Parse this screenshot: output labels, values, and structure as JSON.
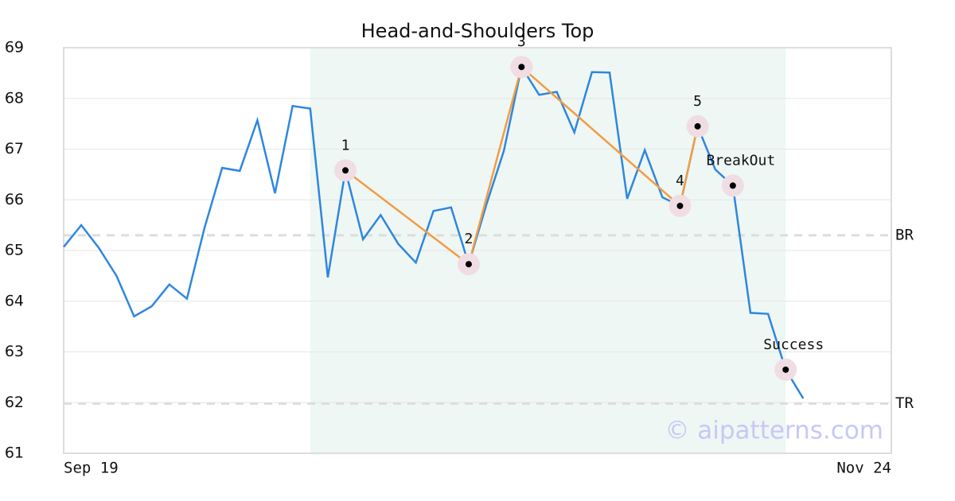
{
  "chart_data": {
    "type": "line",
    "title": "Head-and-Shoulders Top",
    "x": [
      0,
      1,
      2,
      3,
      4,
      5,
      6,
      7,
      8,
      9,
      10,
      11,
      12,
      13,
      14,
      15,
      16,
      17,
      18,
      19,
      20,
      21,
      22,
      23,
      24,
      25,
      26,
      27,
      28,
      29,
      30,
      31,
      32,
      33,
      34,
      35,
      36,
      37,
      38,
      39,
      40,
      41,
      42
    ],
    "series": [
      {
        "color": "#2f86e0",
        "values": [
          65.07,
          65.5,
          65.05,
          64.5,
          63.7,
          63.9,
          64.33,
          64.05,
          65.45,
          66.63,
          66.57,
          67.57,
          66.13,
          67.85,
          67.8,
          64.47,
          66.58,
          65.22,
          65.7,
          65.13,
          64.76,
          65.78,
          65.85,
          64.73,
          65.9,
          66.97,
          68.62,
          68.07,
          68.13,
          67.33,
          68.52,
          68.51,
          66.02,
          66.98,
          66.05,
          65.88,
          67.45,
          66.6,
          66.28,
          63.77,
          63.75,
          62.65,
          62.08
        ]
      }
    ],
    "xlim": [
      0,
      47
    ],
    "xticks": [
      {
        "value": 0,
        "label": "Sep 19"
      },
      {
        "value": 47,
        "label": "Nov 24"
      }
    ],
    "ylim": [
      61,
      69
    ],
    "yticks": [
      61,
      62,
      63,
      64,
      65,
      66,
      67,
      68,
      69
    ],
    "grid": true,
    "highlight": [
      14,
      41
    ],
    "highlight_color": "#eef7f3",
    "pattern_color": "#f39c44",
    "pattern_points": [
      {
        "label": "1",
        "x": 16,
        "y": 66.58
      },
      {
        "label": "2",
        "x": 23,
        "y": 64.73
      },
      {
        "label": "3",
        "x": 26,
        "y": 68.62
      },
      {
        "label": "4",
        "x": 35,
        "y": 65.88
      },
      {
        "label": "5",
        "x": 36,
        "y": 67.45
      }
    ],
    "signal_points": [
      {
        "label": "BreakOut",
        "x": 38,
        "y": 66.28
      },
      {
        "label": "Success",
        "x": 41,
        "y": 62.65
      }
    ],
    "levels": [
      {
        "label": "BR",
        "value": 65.3
      },
      {
        "label": "TR",
        "value": 61.98
      }
    ],
    "watermark": "© aipatterns.com"
  }
}
